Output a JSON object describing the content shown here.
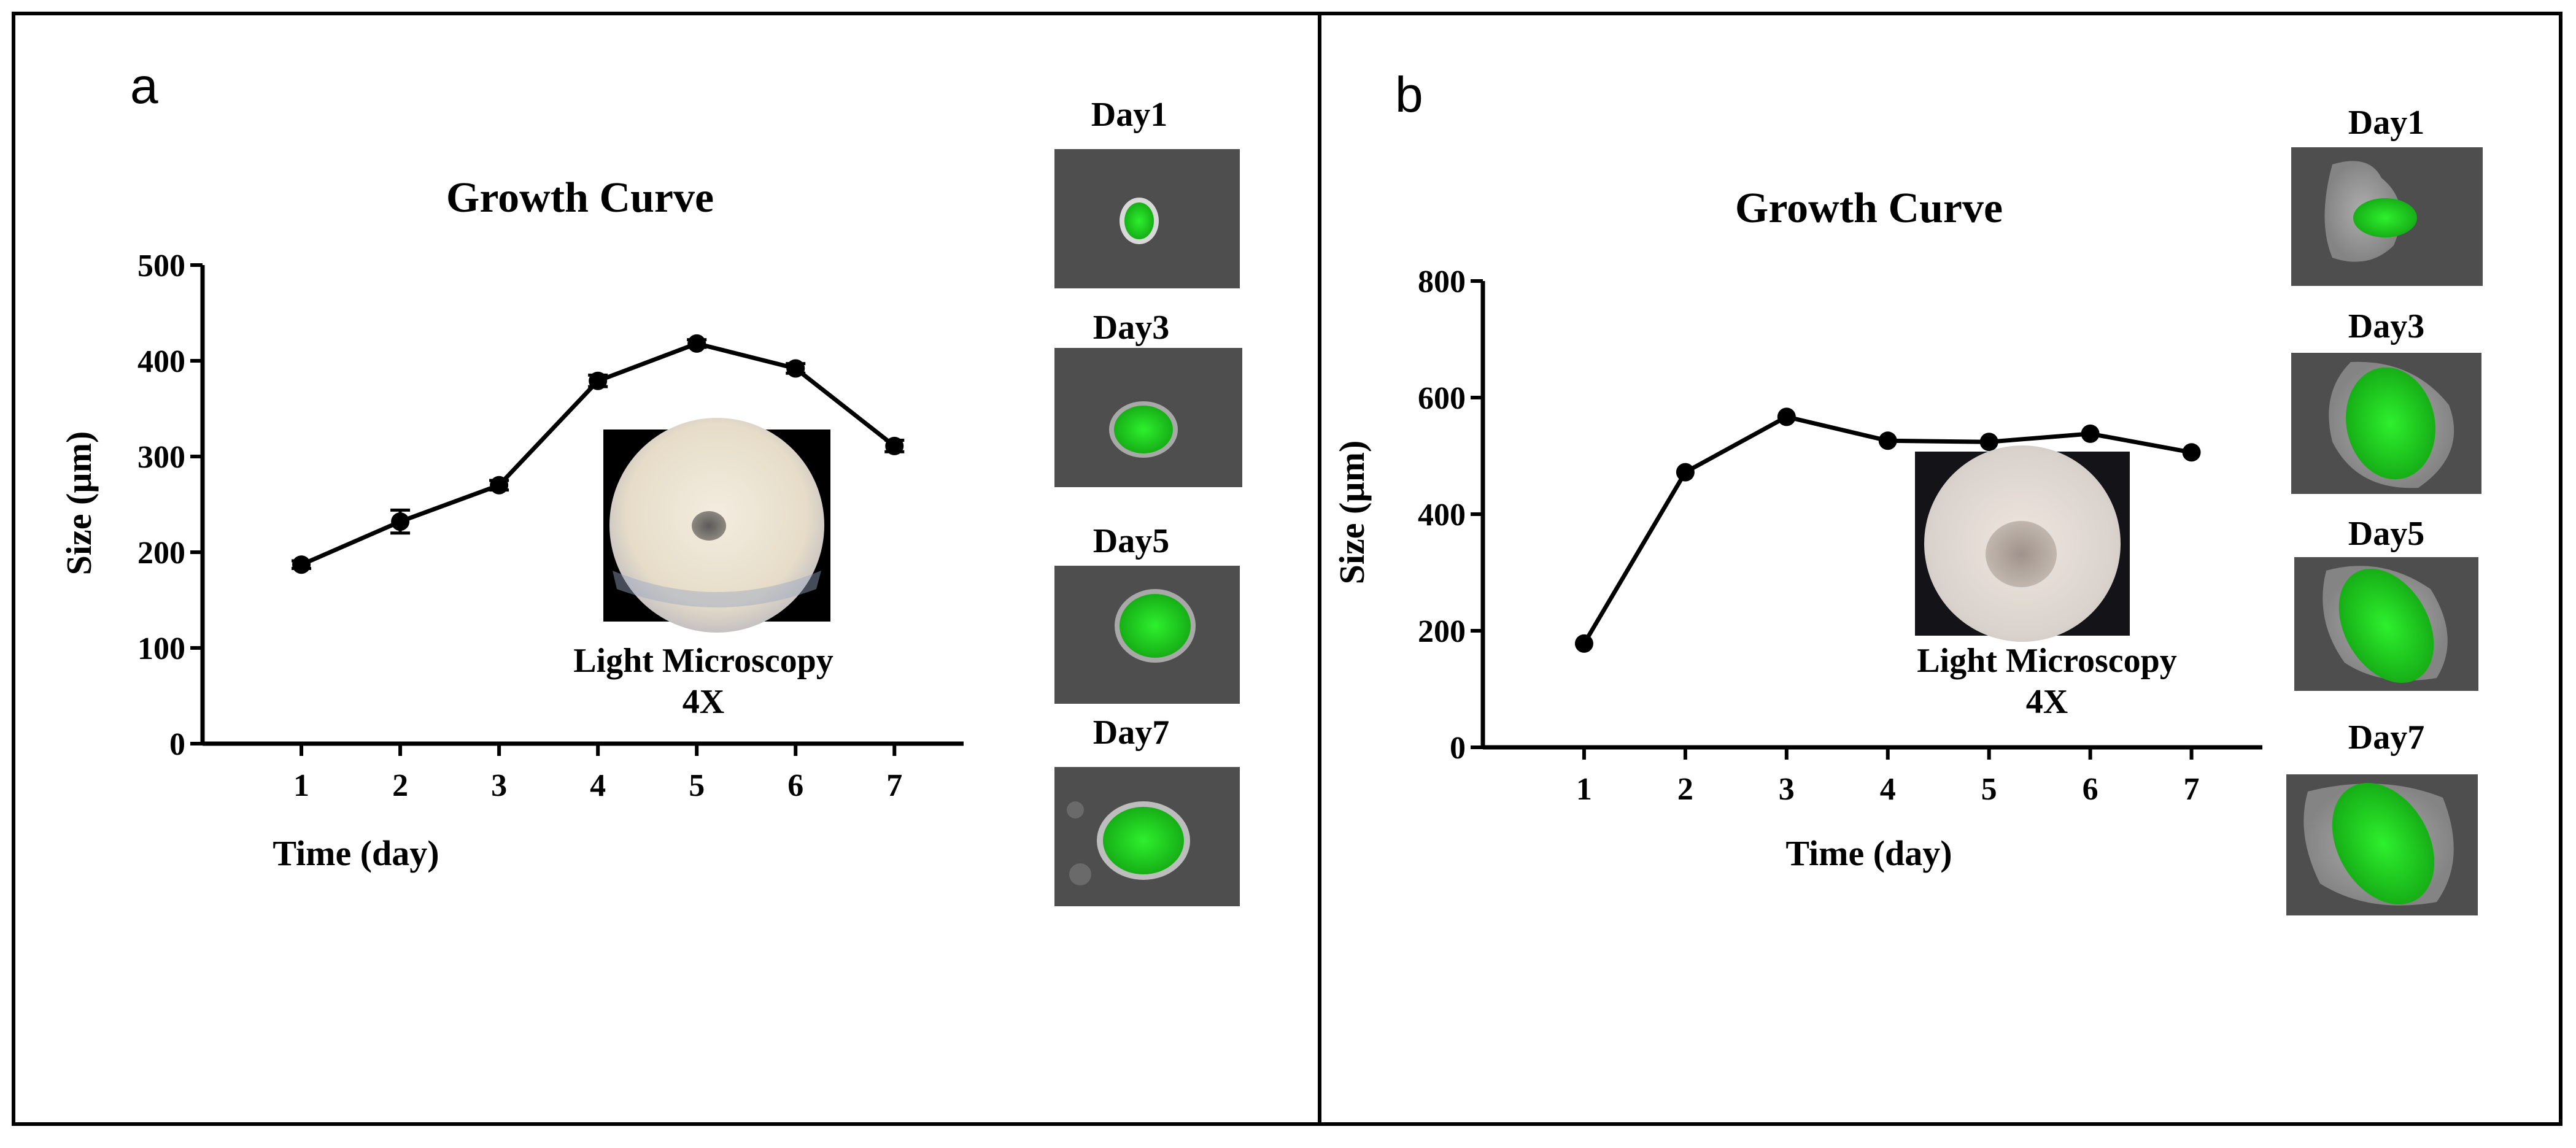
{
  "colors": {
    "line": "#000000",
    "micro_bg": "#4a4a4a",
    "spheroid_green": "#22cc22",
    "dish_cream": "#e9e2cf"
  },
  "panels": [
    {
      "letter": "a",
      "inset": {
        "label_line1": "Light Microscopy",
        "label_line2": "4X"
      },
      "micro_labels": [
        "Day1",
        "Day3",
        "Day5",
        "Day7"
      ]
    },
    {
      "letter": "b",
      "inset": {
        "label_line1": "Light Microscopy",
        "label_line2": "4X"
      },
      "micro_labels": [
        "Day1",
        "Day3",
        "Day5",
        "Day7"
      ]
    }
  ],
  "chart_data": [
    {
      "type": "line",
      "title": "Growth Curve",
      "xlabel": "Time (day)",
      "ylabel": "Size (µm)",
      "x": [
        1,
        2,
        3,
        4,
        5,
        6,
        7
      ],
      "y": [
        187,
        232,
        270,
        379,
        418,
        392,
        311
      ],
      "error": [
        4,
        12,
        5,
        6,
        4,
        5,
        6
      ],
      "xticks": [
        "1",
        "2",
        "3",
        "4",
        "5",
        "6",
        "7"
      ],
      "yticks": [
        "0",
        "100",
        "200",
        "300",
        "400",
        "500"
      ],
      "ylim": [
        0,
        500
      ],
      "xlim": [
        0,
        7.7
      ]
    },
    {
      "type": "line",
      "title": "Growth Curve",
      "xlabel": "Time (day)",
      "ylabel": "Size (µm)",
      "x": [
        1,
        2,
        3,
        4,
        5,
        6,
        7
      ],
      "y": [
        178,
        472,
        567,
        526,
        524,
        538,
        506
      ],
      "xticks": [
        "1",
        "2",
        "3",
        "4",
        "5",
        "6",
        "7"
      ],
      "yticks": [
        "0",
        "200",
        "400",
        "600",
        "800"
      ],
      "ylim": [
        0,
        800
      ],
      "xlim": [
        0,
        7.7
      ]
    }
  ]
}
